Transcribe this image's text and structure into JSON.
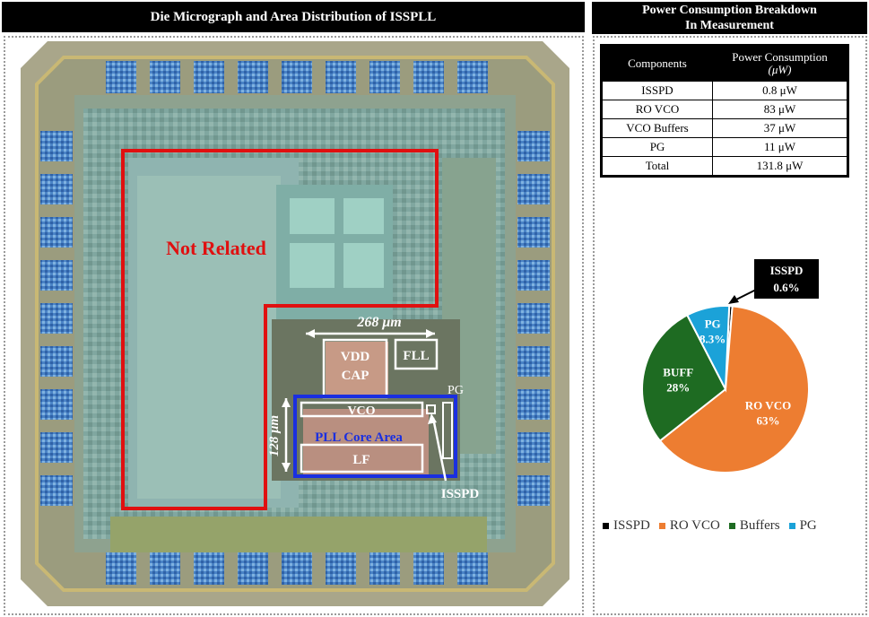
{
  "left_panel": {
    "title": "Die Micrograph and Area Distribution of ISSPLL"
  },
  "right_panel": {
    "title_line1": "Power Consumption Breakdown",
    "title_line2": "In Measurement"
  },
  "table": {
    "headers": [
      "Components",
      "Power Consumption",
      "(μW)"
    ],
    "rows": [
      {
        "component": "ISSPD",
        "value": "0.8 μW"
      },
      {
        "component": "RO VCO",
        "value": "83 μW"
      },
      {
        "component": "VCO Buffers",
        "value": "37 μW"
      },
      {
        "component": "PG",
        "value": "11 μW"
      },
      {
        "component": "Total",
        "value": "131.8 μW"
      }
    ]
  },
  "die_labels": {
    "not_related": "Not Related",
    "width_dim": "268 μm",
    "height_dim": "128 μm",
    "vdd": "VDD",
    "cap": "CAP",
    "fll": "FLL",
    "pg": "PG",
    "vco": "VCO",
    "pll_core": "PLL Core Area",
    "lf": "LF",
    "isspd": "ISSPD"
  },
  "colors": {
    "red_box": "#e01010",
    "blue_box": "#1a2fe0",
    "isspd": "#000000",
    "ro_vco": "#ed7d31",
    "buffers": "#1e6b22",
    "pg": "#1ba2d8"
  },
  "chart_data": {
    "type": "pie",
    "slices": [
      {
        "name": "ISSPD",
        "label": "ISSPD",
        "value": 0.6,
        "value_label": "0.6%",
        "color": "#000000"
      },
      {
        "name": "RO VCO",
        "label": "RO VCO",
        "value": 63,
        "value_label": "63%",
        "color": "#ed7d31"
      },
      {
        "name": "Buffers",
        "label": "BUFF",
        "value": 28,
        "value_label": "28%",
        "color": "#1e6b22"
      },
      {
        "name": "PG",
        "label": "PG",
        "value": 8.3,
        "value_label": "8.3%",
        "color": "#1ba2d8"
      }
    ],
    "legend": [
      "ISSPD",
      "RO VCO",
      "Buffers",
      "PG"
    ],
    "legend_position": "bottom"
  }
}
